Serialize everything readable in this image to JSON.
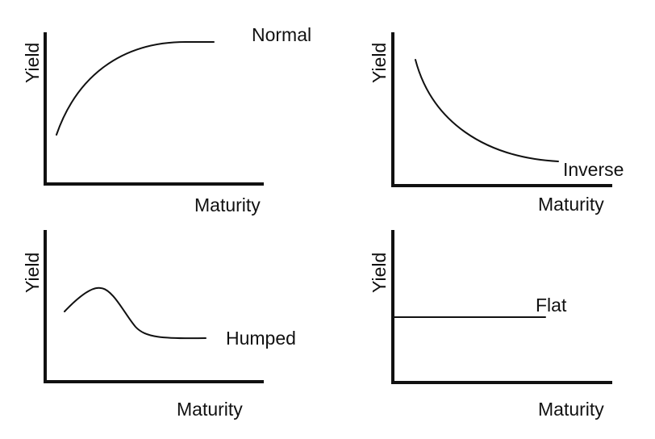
{
  "panels": {
    "normal": {
      "curve_label": "Normal",
      "x_label": "Maturity",
      "y_label": "Yield"
    },
    "inverse": {
      "curve_label": "Inverse",
      "x_label": "Maturity",
      "y_label": "Yield"
    },
    "humped": {
      "curve_label": "Humped",
      "x_label": "Maturity",
      "y_label": "Yield"
    },
    "flat": {
      "curve_label": "Flat",
      "x_label": "Maturity",
      "y_label": "Yield"
    }
  },
  "colors": {
    "ink": "#111111",
    "background": "#ffffff"
  }
}
